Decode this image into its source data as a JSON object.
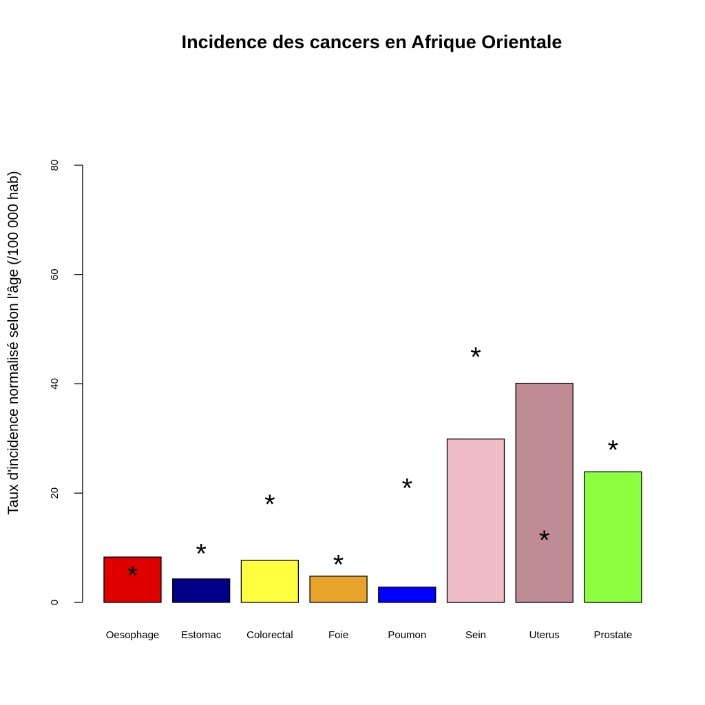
{
  "chart_data": {
    "type": "bar",
    "title": "Incidence des cancers en Afrique Orientale",
    "xlabel": "",
    "ylabel": "Taux d'incidence normalisé selon l'âge (/100 000 hab)",
    "ylim": [
      0,
      80
    ],
    "yticks": [
      0,
      20,
      40,
      60,
      80
    ],
    "grid": false,
    "categories": [
      "Oesophage",
      "Estomac",
      "Colorectal",
      "Foie",
      "Poumon",
      "Sein",
      "Uterus",
      "Prostate"
    ],
    "values": [
      8.3,
      4.3,
      7.7,
      4.8,
      2.8,
      29.9,
      40.1,
      23.9
    ],
    "colors": [
      "#df0000",
      "#00008b",
      "#ffff3f",
      "#e8a42a",
      "#0000ff",
      "#efbcc7",
      "#bf8c96",
      "#8cff3e"
    ],
    "markers": {
      "symbol": "*",
      "values": [
        6.0,
        10.0,
        19.0,
        8.0,
        22.0,
        46.0,
        12.5,
        29.0
      ]
    }
  }
}
